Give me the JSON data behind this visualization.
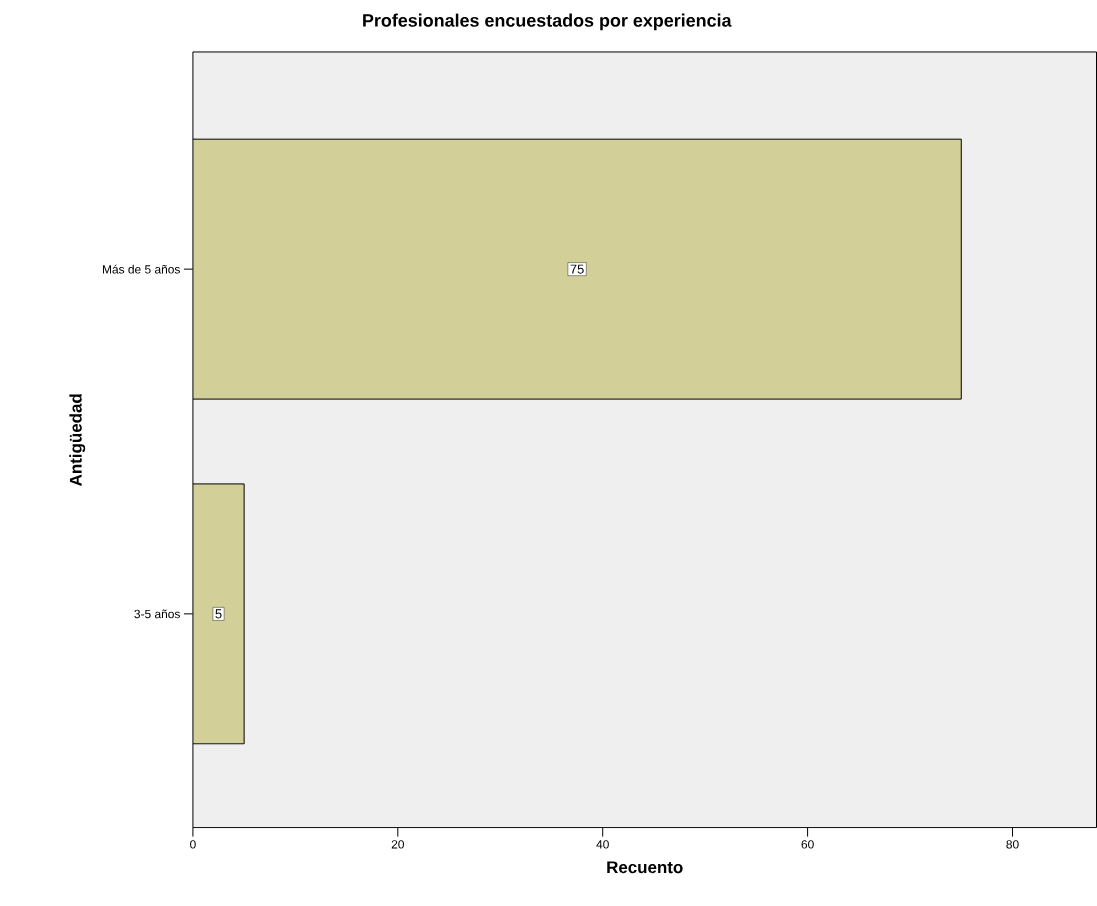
{
  "chart_data": {
    "type": "bar",
    "orientation": "horizontal",
    "title": "Profesionales encuestados por experiencia",
    "xlabel": "Recuento",
    "ylabel": "Antigüedad",
    "categories": [
      "Más de 5 años",
      "3-5 años"
    ],
    "values": [
      75,
      5
    ],
    "color": "#d3cf99",
    "xlim": [
      0,
      88.2
    ],
    "xticks": [
      0,
      20,
      40,
      60,
      80
    ],
    "data_labels": true,
    "grid": false
  }
}
